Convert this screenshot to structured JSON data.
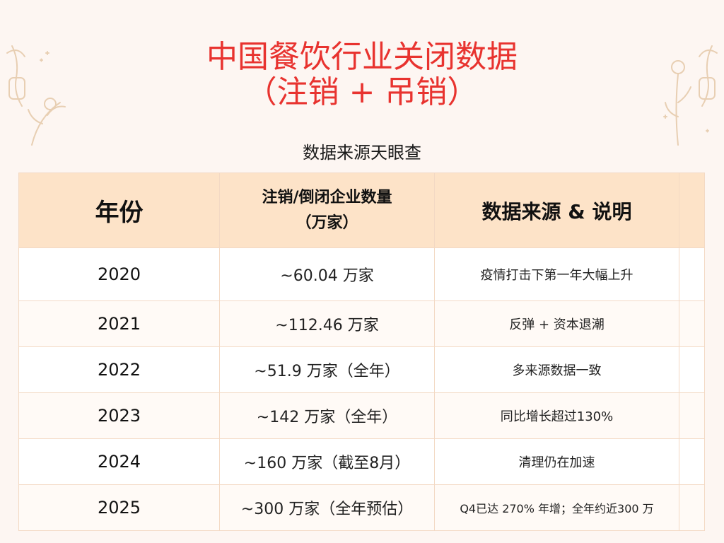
{
  "header": {
    "title_line1": "中国餐饮行业关闭数据",
    "title_line2": "（注销 + 吊销）",
    "source_note": "数据来源天眼查"
  },
  "table": {
    "headers": {
      "year": "年份",
      "count_line1": "注销/倒闭企业数量",
      "count_line2": "（万家）",
      "note": "数据来源 & 说明"
    },
    "rows": [
      {
        "year": "2020",
        "count": "~60.04 万家",
        "note": "疫情打击下第一年大幅上升"
      },
      {
        "year": "2021",
        "count": "~112.46 万家",
        "note": "反弹 + 资本退潮"
      },
      {
        "year": "2022",
        "count": "~51.9 万家（全年）",
        "note": "多来源数据一致"
      },
      {
        "year": "2023",
        "count": "~142 万家（全年）",
        "note": "同比增长超过130%"
      },
      {
        "year": "2024",
        "count": "~160 万家（截至8月）",
        "note": "清理仍在加速"
      },
      {
        "year": "2025",
        "count": "~300 万家（全年预估）",
        "note": "Q4已达 270% 年增；全年约近300 万"
      }
    ]
  },
  "colors": {
    "title": "#e8332f",
    "header_bg": "#fde3c8",
    "border": "#f3d9c4",
    "page_bg": "#fdf6f2",
    "decoration": "#e8cfb3"
  },
  "decorations": {
    "left": "floral-sketch-icon",
    "right": "floral-sketch-icon"
  }
}
